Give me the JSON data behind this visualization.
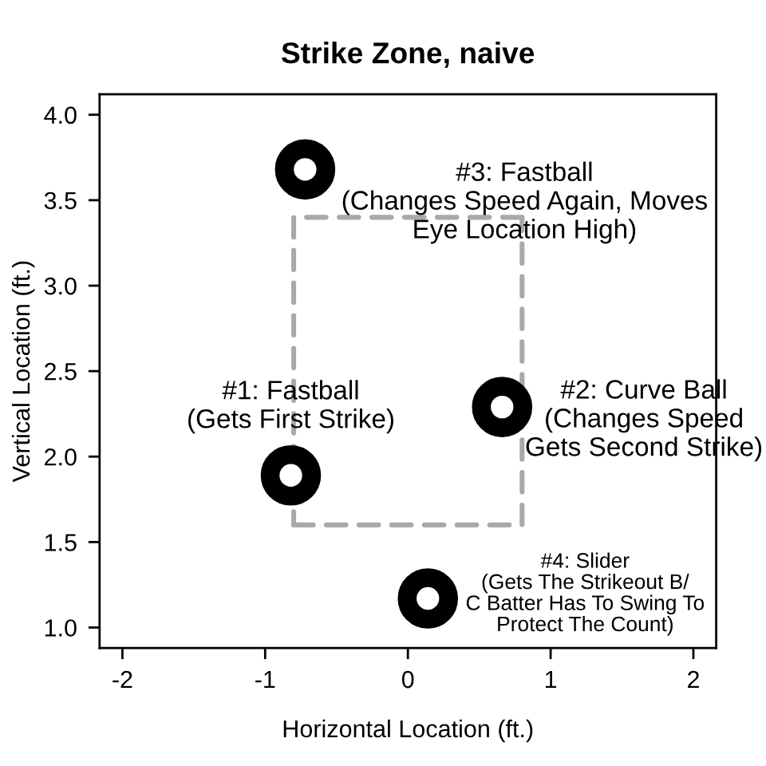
{
  "chart_data": {
    "type": "scatter",
    "title": "Strike Zone, naive",
    "xlabel": "Horizontal Location (ft.)",
    "ylabel": "Vertical Location (ft.)",
    "xlim": [
      -2.16,
      2.16
    ],
    "ylim": [
      0.88,
      4.12
    ],
    "xticks": [
      -2,
      -1,
      0,
      1,
      2
    ],
    "yticks": [
      {
        "value": 1,
        "label": "1.0"
      },
      1.5,
      {
        "value": 2,
        "label": "2.0"
      },
      2.5,
      {
        "value": 3,
        "label": "3.0"
      },
      3.5,
      {
        "value": 4,
        "label": "4.0"
      }
    ],
    "series": [
      {
        "type": "line",
        "color": "#a9a9a9",
        "line_style": "dashed",
        "x": [
          -0.8,
          0.8,
          0.8
        ],
        "values": [
          1.6,
          1.6,
          3.4
        ]
      },
      {
        "type": "line",
        "color": "#a9a9a9",
        "line_style": "dashed",
        "x": [
          0.8,
          -0.8,
          -0.8
        ],
        "values": [
          3.4,
          3.4,
          1.6
        ]
      },
      {
        "color": "#000000",
        "marker": "circle",
        "x": [
          -0.82,
          0.66,
          -0.72,
          0.14
        ],
        "values": [
          1.89,
          2.29,
          3.68,
          1.17
        ]
      }
    ],
    "annotations": [
      {
        "text": "#1: Fastball\n(Gets First Strike)",
        "x": -0.82,
        "y": 1.89
      },
      {
        "text": "#2: Curve Ball\n(Changes Speed\nGets Second Strike)",
        "x": 0.66,
        "y": 2.29
      },
      {
        "text": "#3: Fastball\n(Changes Speed Again, Moves\nEye Location High)",
        "x": -0.72,
        "y": 3.68
      },
      {
        "text": "#4: Slider\n(Gets The Strikeout B/\nC Batter Has To Swing To\nProtect The Count)",
        "x": 0.14,
        "y": 1.17
      }
    ]
  }
}
